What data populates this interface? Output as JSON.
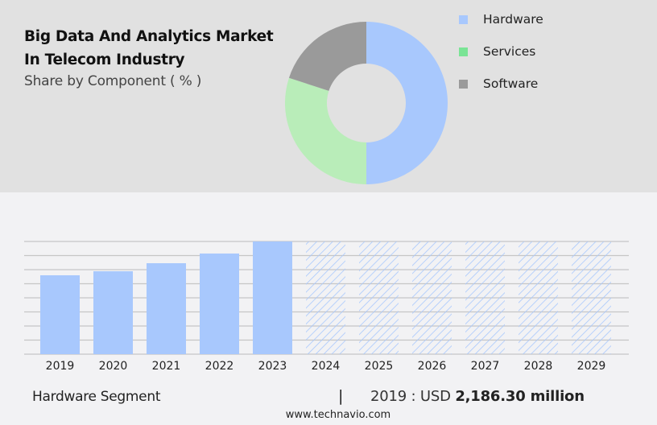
{
  "header": {
    "title_line1": "Big Data And Analytics Market",
    "title_line2": "In Telecom Industry",
    "subtitle": "Share by Component ( % )"
  },
  "legend": [
    {
      "label": "Hardware",
      "color": "#a8c8fd"
    },
    {
      "label": "Services",
      "color": "#7ae495"
    },
    {
      "label": "Software",
      "color": "#9a9a9a"
    }
  ],
  "footer": {
    "segment_label": "Hardware Segment",
    "separator": "|",
    "value_prefix": "2019 : USD",
    "value_bold": "2,186.30 million",
    "url": "www.technavio.com"
  },
  "chart_data": [
    {
      "type": "pie",
      "title": "Big Data And Analytics Market In Telecom Industry",
      "subtitle": "Share by Component ( % )",
      "variant": "donut",
      "categories": [
        "Hardware",
        "Services",
        "Software"
      ],
      "values": [
        50,
        30,
        20
      ],
      "colors": [
        "#a8c8fd",
        "#b9edb9",
        "#9a9a9a"
      ],
      "legend_position": "right"
    },
    {
      "type": "bar",
      "title": "Hardware Segment",
      "categories": [
        "2019",
        "2020",
        "2021",
        "2022",
        "2023",
        "2024",
        "2025",
        "2026",
        "2027",
        "2028",
        "2029"
      ],
      "values": [
        2186.3,
        2298,
        2521,
        2789,
        3123,
        null,
        null,
        null,
        null,
        null,
        null
      ],
      "forecast_years": [
        "2024",
        "2025",
        "2026",
        "2027",
        "2028",
        "2029"
      ],
      "forecast_style": "hatched",
      "xlabel": "",
      "ylabel": "",
      "ylim": [
        0,
        3123
      ],
      "grid": true,
      "bar_color": "#a8c8fd",
      "annotation": "2019 : USD 2,186.30 million"
    }
  ]
}
